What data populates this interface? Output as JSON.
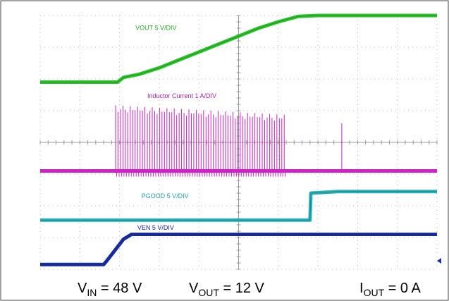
{
  "chart_data": {
    "type": "line",
    "grid": true,
    "time_range_div": [
      -5,
      5
    ],
    "volts_range_div": [
      -4,
      4
    ],
    "series": [
      {
        "name": "VOUT 5 V/DIV",
        "color": "#2bc42b",
        "points": [
          [
            -5,
            1.9
          ],
          [
            -4,
            1.9
          ],
          [
            -3.05,
            1.9
          ],
          [
            -2.9,
            2.05
          ],
          [
            -2.5,
            2.15
          ],
          [
            -2,
            2.35
          ],
          [
            -1.5,
            2.6
          ],
          [
            -1,
            2.85
          ],
          [
            -0.5,
            3.1
          ],
          [
            0,
            3.35
          ],
          [
            0.5,
            3.6
          ],
          [
            1,
            3.8
          ],
          [
            1.5,
            3.97
          ],
          [
            2,
            4.0
          ],
          [
            3,
            4.0
          ],
          [
            4,
            4.0
          ],
          [
            5,
            4.0
          ]
        ]
      },
      {
        "name": "Inductor Current 1 A/DIV",
        "color": "#d020c8",
        "baseline": -0.9,
        "pulse_start": -3.1,
        "pulse_end": 1.15,
        "pulse_peak_start": 1.05,
        "pulse_peak_end": 0.75,
        "pulse_count": 70,
        "isolated_pulse_x": 2.6,
        "isolated_pulse_peak": 0.6
      },
      {
        "name": "PGOOD 5 V/DIV",
        "color": "#29b2bd",
        "points": [
          [
            -5,
            -2.45
          ],
          [
            0,
            -2.45
          ],
          [
            1.6,
            -2.45
          ],
          [
            1.8,
            -2.45
          ],
          [
            1.82,
            -1.6
          ],
          [
            2.5,
            -1.55
          ],
          [
            5,
            -1.55
          ]
        ]
      },
      {
        "name": "VEN 5 V/DIV",
        "color": "#1a2aa8",
        "points": [
          [
            -5,
            -3.85
          ],
          [
            -3.4,
            -3.85
          ],
          [
            -3.3,
            -3.7
          ],
          [
            -2.9,
            -3.05
          ],
          [
            -2.7,
            -2.9
          ],
          [
            0,
            -2.9
          ],
          [
            5,
            -2.9
          ]
        ]
      }
    ],
    "labels": [
      {
        "text": "VOUT 5 V/DIV",
        "color": "#22aa22",
        "x": -2.6,
        "y": 3.55
      },
      {
        "text": "Inductor Current 1 A/DIV",
        "color": "#b020b0",
        "x": -2.3,
        "y": 1.4
      },
      {
        "text": "PGOOD 5 V/DIV",
        "color": "#22a0b0",
        "x": -2.45,
        "y": -1.75
      },
      {
        "text": "VEN 5 V/DIV",
        "color": "#1a2aa8",
        "x": -2.55,
        "y": -2.75
      }
    ]
  },
  "conditions": {
    "vin_main": "V",
    "vin_sub": "IN",
    "vin_value": " = 48 V",
    "vout_main": "V",
    "vout_sub": "OUT",
    "vout_value": " = 12 V",
    "iout_main": "I",
    "iout_sub": "OUT",
    "iout_value": " = 0 A"
  }
}
